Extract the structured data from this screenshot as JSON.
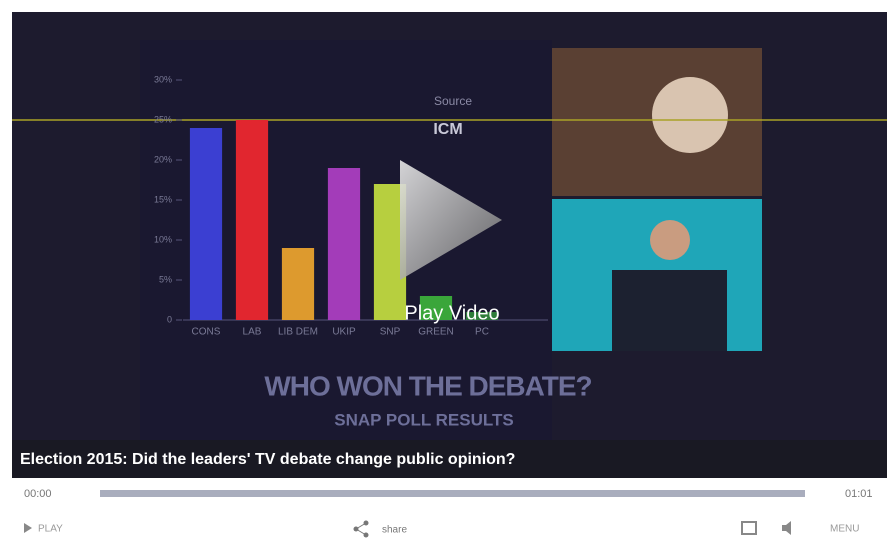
{
  "chart_data": {
    "type": "bar",
    "source_label": "Source",
    "source": "ICM",
    "categories": [
      "CONS",
      "LAB",
      "LIB DEM",
      "UKIP",
      "SNP",
      "GREEN",
      "PC"
    ],
    "values": [
      24,
      25,
      9,
      19,
      17,
      3,
      1
    ],
    "colors": [
      "#3b3fd2",
      "#e1262f",
      "#dd9a2e",
      "#a33cb9",
      "#b7cf3f",
      "#3aa63a",
      "#2f7d3a"
    ],
    "ylim": [
      0,
      30
    ],
    "yticks": [
      {
        "value": 0,
        "label": "0"
      },
      {
        "value": 5,
        "label": "5%"
      },
      {
        "value": 10,
        "label": "10%"
      },
      {
        "value": 15,
        "label": "15%"
      },
      {
        "value": 20,
        "label": "20%"
      },
      {
        "value": 25,
        "label": "25%"
      },
      {
        "value": 30,
        "label": "30%"
      }
    ],
    "headline": "WHO WON THE DEBATE?",
    "subheadline": "SNAP POLL RESULTS"
  },
  "player": {
    "overlay": "Play Video",
    "caption": "Election 2015: Did the leaders' TV debate change public opinion?",
    "current_time": "00:00",
    "duration": "01:01",
    "play": "PLAY",
    "share": "share",
    "menu": "MENU"
  }
}
